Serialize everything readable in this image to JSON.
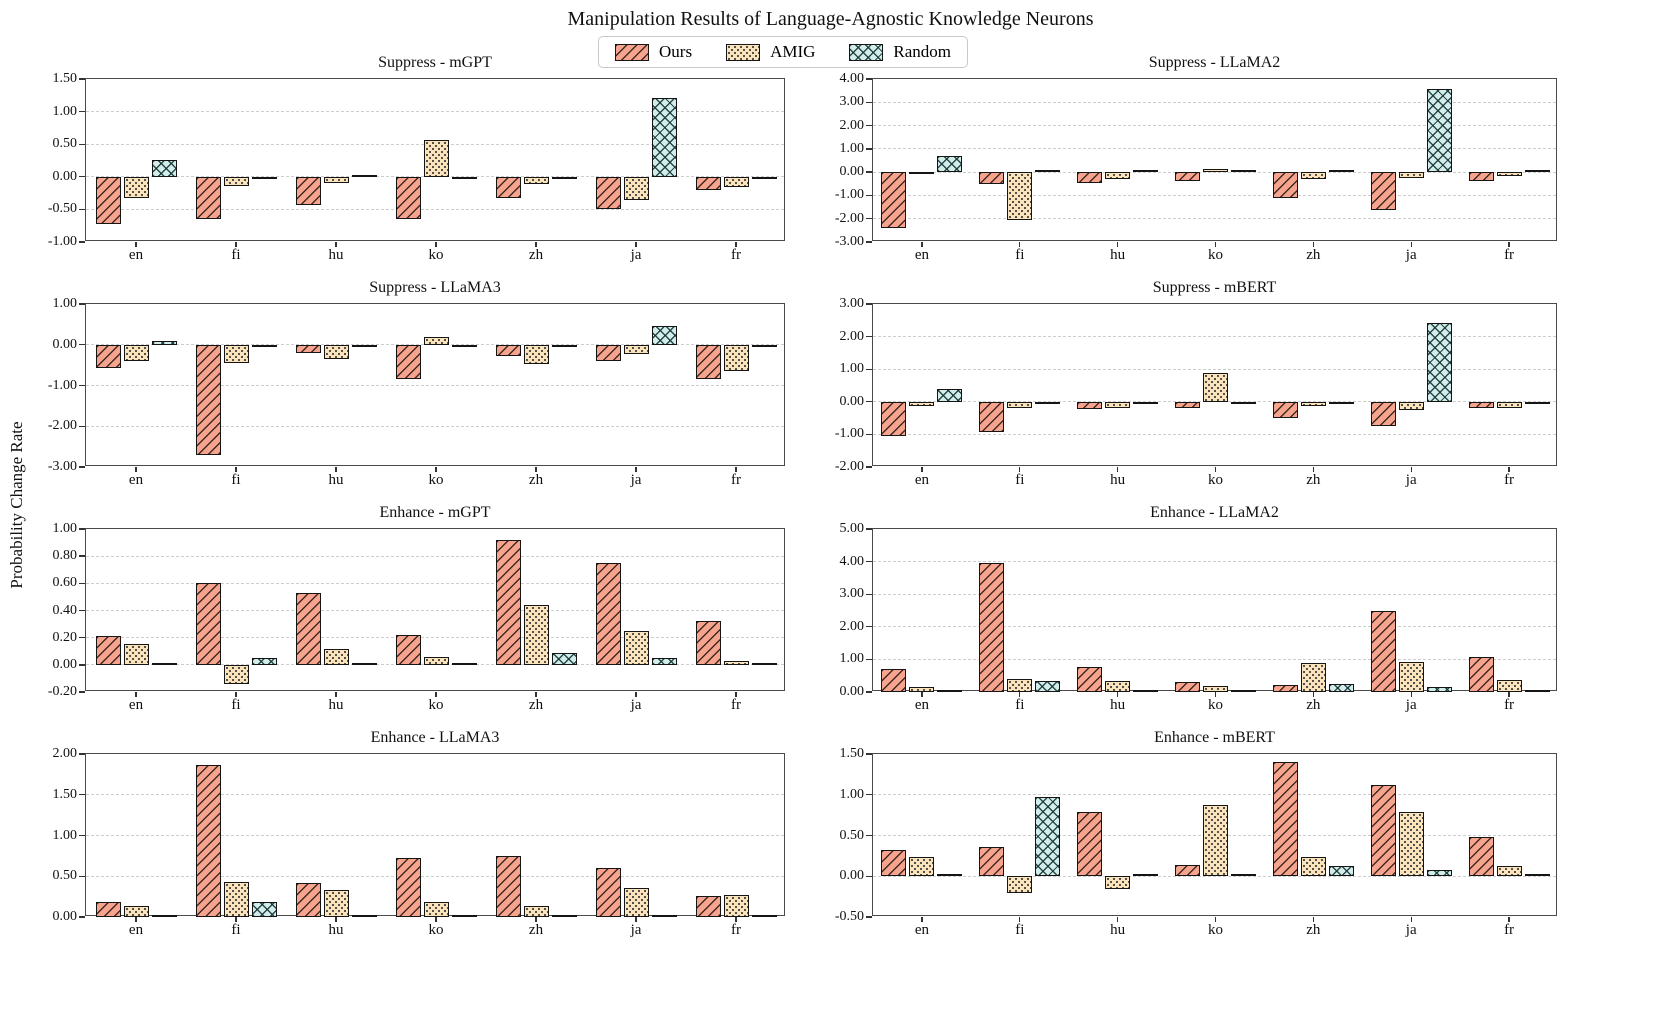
{
  "figure": {
    "title": "Manipulation Results of Language-Agnostic Knowledge Neurons",
    "ylabel": "Probability Change Rate"
  },
  "chart_data": {
    "type": "bar",
    "title": "Manipulation Results of Language-Agnostic Knowledge Neurons",
    "ylabel": "Probability Change Rate",
    "grid": true,
    "legend_position": "top-center",
    "categories": [
      "en",
      "fi",
      "hu",
      "ko",
      "zh",
      "ja",
      "fr"
    ],
    "legend": [
      {
        "name": "Ours",
        "color": "#f6a48e",
        "hatch": "diagonal"
      },
      {
        "name": "AMIG",
        "color": "#fbe4bb",
        "hatch": "dots"
      },
      {
        "name": "Random",
        "color": "#d5edea",
        "hatch": "crosshatch"
      }
    ],
    "subplots": [
      {
        "title": "Suppress - mGPT",
        "ylim": [
          -1.0,
          1.5
        ],
        "yticks": [
          1.5,
          1.0,
          0.5,
          0.0,
          -0.5,
          -1.0
        ],
        "series": [
          {
            "name": "Ours",
            "values": [
              -0.72,
              -0.65,
              -0.44,
              -0.65,
              -0.33,
              -0.5,
              -0.2
            ]
          },
          {
            "name": "AMIG",
            "values": [
              -0.33,
              -0.14,
              -0.1,
              0.57,
              -0.11,
              -0.35,
              -0.15
            ]
          },
          {
            "name": "Random",
            "values": [
              0.26,
              -0.01,
              0.02,
              -0.01,
              -0.01,
              1.21,
              -0.01
            ]
          }
        ]
      },
      {
        "title": "Suppress - LLaMA2",
        "ylim": [
          -3.0,
          4.0
        ],
        "yticks": [
          4.0,
          3.0,
          2.0,
          1.0,
          0.0,
          -1.0,
          -2.0,
          -3.0
        ],
        "series": [
          {
            "name": "Ours",
            "values": [
              -2.4,
              -0.5,
              -0.48,
              -0.38,
              -1.12,
              -1.62,
              -0.38
            ]
          },
          {
            "name": "AMIG",
            "values": [
              -0.1,
              -2.05,
              -0.3,
              0.15,
              -0.3,
              -0.25,
              -0.15
            ]
          },
          {
            "name": "Random",
            "values": [
              0.7,
              0.03,
              0.03,
              0.02,
              0.03,
              3.55,
              0.03
            ]
          }
        ]
      },
      {
        "title": "Suppress - LLaMA3",
        "ylim": [
          -3.0,
          1.0
        ],
        "yticks": [
          1.0,
          0.0,
          -1.0,
          -2.0,
          -3.0
        ],
        "series": [
          {
            "name": "Ours",
            "values": [
              -0.57,
              -2.7,
              -0.2,
              -0.85,
              -0.28,
              -0.4,
              -0.85
            ]
          },
          {
            "name": "AMIG",
            "values": [
              -0.4,
              -0.45,
              -0.36,
              0.18,
              -0.47,
              -0.22,
              -0.65
            ]
          },
          {
            "name": "Random",
            "values": [
              0.08,
              -0.02,
              -0.02,
              -0.02,
              -0.02,
              0.47,
              -0.02
            ]
          }
        ]
      },
      {
        "title": "Suppress - mBERT",
        "ylim": [
          -2.0,
          3.0
        ],
        "yticks": [
          3.0,
          2.0,
          1.0,
          0.0,
          -1.0,
          -2.0
        ],
        "series": [
          {
            "name": "Ours",
            "values": [
              -1.05,
              -0.92,
              -0.22,
              -0.18,
              -0.5,
              -0.75,
              -0.2
            ]
          },
          {
            "name": "AMIG",
            "values": [
              -0.12,
              -0.2,
              -0.18,
              0.88,
              -0.12,
              -0.25,
              -0.2
            ]
          },
          {
            "name": "Random",
            "values": [
              0.4,
              -0.02,
              -0.02,
              -0.02,
              -0.02,
              2.42,
              -0.03
            ]
          }
        ]
      },
      {
        "title": "Enhance - mGPT",
        "ylim": [
          -0.2,
          1.0
        ],
        "yticks": [
          1.0,
          0.8,
          0.6,
          0.4,
          0.2,
          0.0,
          -0.2
        ],
        "series": [
          {
            "name": "Ours",
            "values": [
              0.21,
              0.6,
              0.53,
              0.22,
              0.92,
              0.75,
              0.32
            ]
          },
          {
            "name": "AMIG",
            "values": [
              0.15,
              -0.14,
              0.12,
              0.06,
              0.44,
              0.25,
              0.03
            ]
          },
          {
            "name": "Random",
            "values": [
              0.01,
              0.05,
              0.01,
              0.01,
              0.09,
              0.05,
              0.01
            ]
          }
        ]
      },
      {
        "title": "Enhance - LLaMA2",
        "ylim": [
          0.0,
          5.0
        ],
        "yticks": [
          5.0,
          4.0,
          3.0,
          2.0,
          1.0,
          0.0
        ],
        "series": [
          {
            "name": "Ours",
            "values": [
              0.72,
              3.95,
              0.77,
              0.32,
              0.23,
              2.5,
              1.08
            ]
          },
          {
            "name": "AMIG",
            "values": [
              0.15,
              0.4,
              0.33,
              0.17,
              0.9,
              0.92,
              0.36
            ]
          },
          {
            "name": "Random",
            "values": [
              0.03,
              0.35,
              0.01,
              0.01,
              0.26,
              0.15,
              0.01
            ]
          }
        ]
      },
      {
        "title": "Enhance - LLaMA3",
        "ylim": [
          0.0,
          2.0
        ],
        "yticks": [
          2.0,
          1.5,
          1.0,
          0.5,
          0.0
        ],
        "series": [
          {
            "name": "Ours",
            "values": [
              0.18,
              1.87,
              0.42,
              0.73,
              0.75,
              0.6,
              0.26
            ]
          },
          {
            "name": "AMIG",
            "values": [
              0.14,
              0.43,
              0.33,
              0.18,
              0.13,
              0.35,
              0.27
            ]
          },
          {
            "name": "Random",
            "values": [
              0.01,
              0.19,
              0.01,
              0.01,
              0.03,
              0.02,
              0.01
            ]
          }
        ]
      },
      {
        "title": "Enhance - mBERT",
        "ylim": [
          -0.5,
          1.5
        ],
        "yticks": [
          1.5,
          1.0,
          0.5,
          0.0,
          -0.5
        ],
        "series": [
          {
            "name": "Ours",
            "values": [
              0.32,
              0.36,
              0.79,
              0.14,
              1.4,
              1.12,
              0.48
            ]
          },
          {
            "name": "AMIG",
            "values": [
              0.24,
              -0.2,
              -0.16,
              0.87,
              0.24,
              0.79,
              0.13
            ]
          },
          {
            "name": "Random",
            "values": [
              0.02,
              0.97,
              0.01,
              0.01,
              0.13,
              0.08,
              0.01
            ]
          }
        ]
      }
    ]
  }
}
